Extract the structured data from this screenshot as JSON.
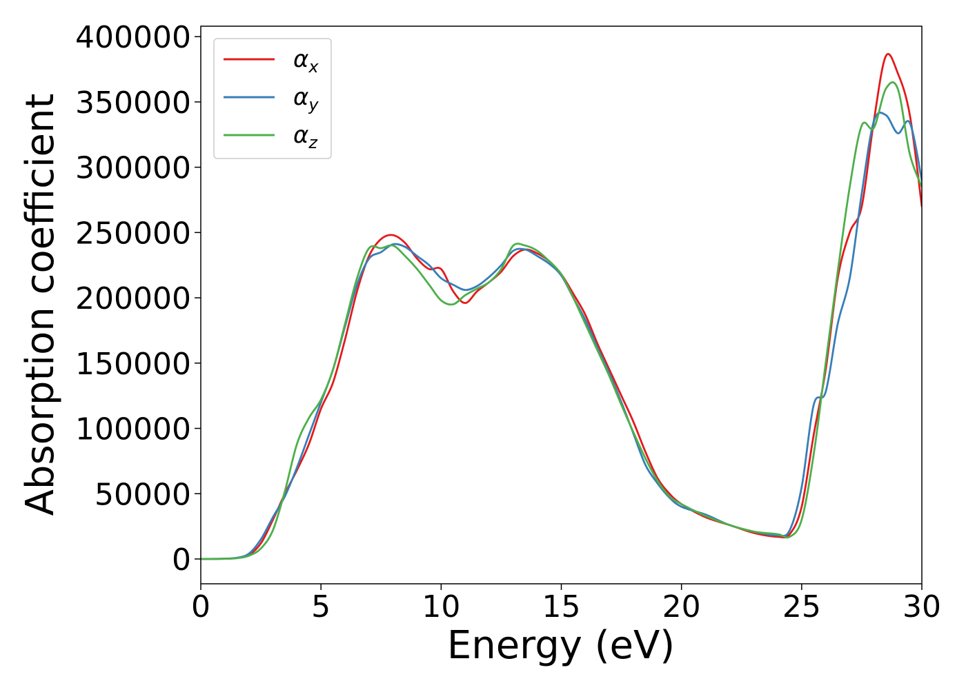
{
  "chart_data": {
    "type": "line",
    "title": "",
    "xlabel": "Energy (eV)",
    "ylabel": "Absorption coefficient",
    "xlim": [
      0,
      30
    ],
    "ylim": [
      -19000,
      408000
    ],
    "xticks": [
      0,
      5,
      10,
      15,
      20,
      25,
      30
    ],
    "yticks": [
      0,
      50000,
      100000,
      150000,
      200000,
      250000,
      300000,
      350000,
      400000
    ],
    "grid": false,
    "legend_position": "top-left",
    "series": [
      {
        "name": "α",
        "subscript": "x",
        "color": "#e41a1c",
        "points": [
          [
            0,
            0
          ],
          [
            1,
            200
          ],
          [
            1.5,
            800
          ],
          [
            2,
            3000
          ],
          [
            2.5,
            12000
          ],
          [
            3,
            30000
          ],
          [
            3.5,
            50000
          ],
          [
            4,
            68000
          ],
          [
            4.5,
            88000
          ],
          [
            5,
            115000
          ],
          [
            5.5,
            135000
          ],
          [
            6,
            168000
          ],
          [
            6.5,
            205000
          ],
          [
            7,
            232000
          ],
          [
            7.5,
            245000
          ],
          [
            8,
            248000
          ],
          [
            8.5,
            242000
          ],
          [
            9,
            230000
          ],
          [
            9.5,
            222000
          ],
          [
            10,
            222000
          ],
          [
            10.5,
            205000
          ],
          [
            11,
            196000
          ],
          [
            11.5,
            205000
          ],
          [
            12,
            212000
          ],
          [
            12.5,
            220000
          ],
          [
            13,
            232000
          ],
          [
            13.5,
            237000
          ],
          [
            14,
            234000
          ],
          [
            14.5,
            228000
          ],
          [
            15,
            218000
          ],
          [
            15.5,
            203000
          ],
          [
            16,
            187000
          ],
          [
            16.5,
            165000
          ],
          [
            17,
            145000
          ],
          [
            17.5,
            125000
          ],
          [
            18,
            105000
          ],
          [
            18.5,
            82000
          ],
          [
            19,
            62000
          ],
          [
            19.5,
            50000
          ],
          [
            20,
            42000
          ],
          [
            21,
            32000
          ],
          [
            22,
            26000
          ],
          [
            23,
            20000
          ],
          [
            24,
            17000
          ],
          [
            24.5,
            19000
          ],
          [
            25,
            40000
          ],
          [
            25.5,
            95000
          ],
          [
            26,
            145000
          ],
          [
            26.5,
            215000
          ],
          [
            27,
            250000
          ],
          [
            27.5,
            270000
          ],
          [
            28,
            335000
          ],
          [
            28.5,
            385000
          ],
          [
            29,
            372000
          ],
          [
            29.5,
            340000
          ],
          [
            30,
            270000
          ]
        ]
      },
      {
        "name": "α",
        "subscript": "y",
        "color": "#377eb8",
        "points": [
          [
            0,
            0
          ],
          [
            1,
            200
          ],
          [
            1.5,
            900
          ],
          [
            2,
            4000
          ],
          [
            2.5,
            15000
          ],
          [
            3,
            32000
          ],
          [
            3.5,
            48000
          ],
          [
            4,
            70000
          ],
          [
            4.5,
            95000
          ],
          [
            5,
            120000
          ],
          [
            5.5,
            145000
          ],
          [
            6,
            178000
          ],
          [
            6.5,
            210000
          ],
          [
            7,
            230000
          ],
          [
            7.5,
            235000
          ],
          [
            8,
            241000
          ],
          [
            8.5,
            239000
          ],
          [
            9,
            232000
          ],
          [
            9.5,
            225000
          ],
          [
            10,
            215000
          ],
          [
            10.5,
            210000
          ],
          [
            11,
            206000
          ],
          [
            11.5,
            209000
          ],
          [
            12,
            216000
          ],
          [
            12.5,
            225000
          ],
          [
            13,
            236000
          ],
          [
            13.5,
            237000
          ],
          [
            14,
            232000
          ],
          [
            14.5,
            226000
          ],
          [
            15,
            217000
          ],
          [
            15.5,
            200000
          ],
          [
            16,
            183000
          ],
          [
            16.5,
            162000
          ],
          [
            17,
            142000
          ],
          [
            17.5,
            120000
          ],
          [
            18,
            96000
          ],
          [
            18.5,
            72000
          ],
          [
            19,
            58000
          ],
          [
            19.5,
            47000
          ],
          [
            20,
            40000
          ],
          [
            21,
            34000
          ],
          [
            22,
            26000
          ],
          [
            23,
            21000
          ],
          [
            24,
            18000
          ],
          [
            24.5,
            22000
          ],
          [
            25,
            55000
          ],
          [
            25.5,
            118000
          ],
          [
            26,
            128000
          ],
          [
            26.5,
            180000
          ],
          [
            27,
            215000
          ],
          [
            27.5,
            280000
          ],
          [
            28,
            335000
          ],
          [
            28.5,
            340000
          ],
          [
            29,
            326000
          ],
          [
            29.5,
            334000
          ],
          [
            30,
            290000
          ]
        ]
      },
      {
        "name": "α",
        "subscript": "z",
        "color": "#4daf4a",
        "points": [
          [
            0,
            0
          ],
          [
            1,
            200
          ],
          [
            1.5,
            600
          ],
          [
            2,
            2500
          ],
          [
            2.5,
            8000
          ],
          [
            3,
            22000
          ],
          [
            3.5,
            52000
          ],
          [
            4,
            88000
          ],
          [
            4.5,
            108000
          ],
          [
            5,
            122000
          ],
          [
            5.5,
            145000
          ],
          [
            6,
            180000
          ],
          [
            6.5,
            215000
          ],
          [
            7,
            238000
          ],
          [
            7.5,
            238000
          ],
          [
            8,
            240000
          ],
          [
            8.5,
            232000
          ],
          [
            9,
            222000
          ],
          [
            9.5,
            210000
          ],
          [
            10,
            198000
          ],
          [
            10.5,
            195000
          ],
          [
            11,
            202000
          ],
          [
            11.5,
            207000
          ],
          [
            12,
            212000
          ],
          [
            12.5,
            222000
          ],
          [
            13,
            240000
          ],
          [
            13.5,
            240000
          ],
          [
            14,
            236000
          ],
          [
            14.5,
            228000
          ],
          [
            15,
            218000
          ],
          [
            15.5,
            200000
          ],
          [
            16,
            180000
          ],
          [
            16.5,
            160000
          ],
          [
            17,
            140000
          ],
          [
            17.5,
            118000
          ],
          [
            18,
            97000
          ],
          [
            18.5,
            77000
          ],
          [
            19,
            60000
          ],
          [
            19.5,
            48000
          ],
          [
            20,
            42000
          ],
          [
            21,
            33000
          ],
          [
            22,
            26000
          ],
          [
            23,
            21000
          ],
          [
            24,
            19000
          ],
          [
            24.5,
            17000
          ],
          [
            25,
            30000
          ],
          [
            25.5,
            80000
          ],
          [
            26,
            150000
          ],
          [
            26.5,
            220000
          ],
          [
            27,
            285000
          ],
          [
            27.5,
            332000
          ],
          [
            28,
            330000
          ],
          [
            28.5,
            360000
          ],
          [
            29,
            360000
          ],
          [
            29.5,
            310000
          ],
          [
            30,
            285000
          ]
        ]
      }
    ]
  }
}
